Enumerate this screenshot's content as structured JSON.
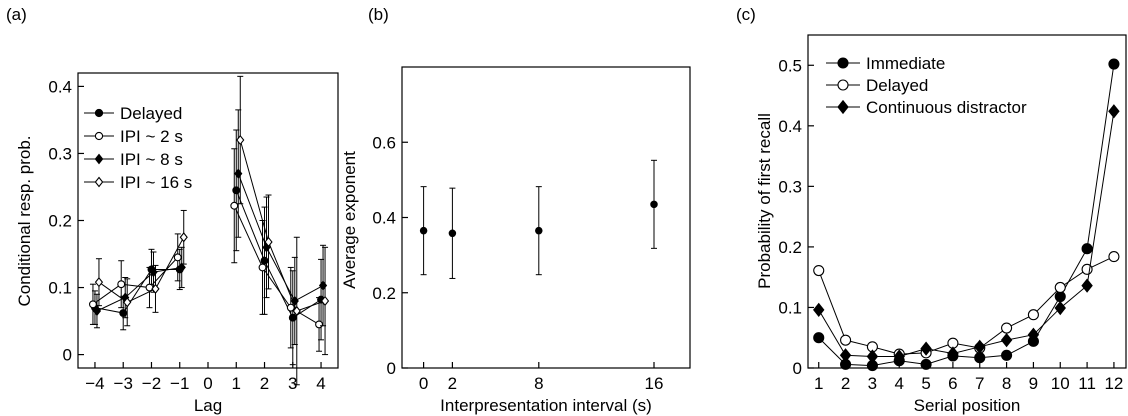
{
  "chart_data": [
    {
      "type": "line",
      "panel_label": "(a)",
      "xlabel": "Lag",
      "ylabel": "Conditional resp. prob.",
      "xlim": [
        -4.6,
        4.6
      ],
      "ylim": [
        -0.02,
        0.42
      ],
      "x_ticks": [
        -4,
        -3,
        -2,
        -1,
        0,
        1,
        2,
        3,
        4
      ],
      "x_tick_labels": [
        "−4",
        "−3",
        "−2",
        "−1",
        "0",
        "1",
        "2",
        "3",
        "4"
      ],
      "y_ticks": [
        0,
        0.1,
        0.2,
        0.3,
        0.4
      ],
      "y_tick_labels": [
        "0",
        "0.1",
        "0.2",
        "0.3",
        "0.4"
      ],
      "legend_position": "top-left",
      "series": [
        {
          "name": "Delayed",
          "marker": "filled-circle",
          "segments": [
            {
              "x": [
                -4,
                -3,
                -2,
                -1
              ],
              "y": [
                0.07,
                0.062,
                0.127,
                0.127
              ],
              "err": [
                0.025,
                0.025,
                0.03,
                0.03
              ]
            },
            {
              "x": [
                1,
                2,
                3,
                4
              ],
              "y": [
                0.245,
                0.14,
                0.055,
                0.082
              ],
              "err": [
                0.09,
                0.08,
                0.07,
                0.06
              ]
            }
          ]
        },
        {
          "name": "IPI ~ 2 s",
          "marker": "open-circle",
          "segments": [
            {
              "x": [
                -4,
                -3,
                -2,
                -1
              ],
              "y": [
                0.075,
                0.105,
                0.1,
                0.145
              ],
              "err": [
                0.03,
                0.035,
                0.03,
                0.035
              ]
            },
            {
              "x": [
                1,
                2,
                3,
                4
              ],
              "y": [
                0.222,
                0.13,
                0.07,
                0.045
              ],
              "err": [
                0.085,
                0.07,
                0.06,
                0.04
              ]
            }
          ]
        },
        {
          "name": "IPI ~ 8 s",
          "marker": "filled-diamond",
          "segments": [
            {
              "x": [
                -4,
                -3,
                -2,
                -1
              ],
              "y": [
                0.065,
                0.085,
                0.123,
                0.13
              ],
              "err": [
                0.025,
                0.03,
                0.03,
                0.03
              ]
            },
            {
              "x": [
                1,
                2,
                3,
                4
              ],
              "y": [
                0.27,
                0.16,
                0.08,
                0.103
              ],
              "err": [
                0.095,
                0.075,
                0.065,
                0.06
              ]
            }
          ]
        },
        {
          "name": "IPI ~ 16 s",
          "marker": "open-diamond",
          "segments": [
            {
              "x": [
                -4,
                -3,
                -2,
                -1
              ],
              "y": [
                0.108,
                0.078,
                0.098,
                0.175
              ],
              "err": [
                0.035,
                0.035,
                0.035,
                0.04
              ]
            },
            {
              "x": [
                1,
                2,
                3,
                4
              ],
              "y": [
                0.32,
                0.168,
                0.065,
                0.08
              ],
              "err": [
                0.095,
                0.07,
                0.11,
                0.08
              ]
            }
          ]
        }
      ]
    },
    {
      "type": "scatter",
      "panel_label": "(b)",
      "xlabel": "Interpresentation interval (s)",
      "ylabel": "Average exponent",
      "xlim": [
        -1.5,
        18.5
      ],
      "ylim": [
        0,
        0.8
      ],
      "x_ticks": [
        0,
        2,
        8,
        16
      ],
      "x_tick_labels": [
        "0",
        "2",
        "8",
        "16"
      ],
      "y_ticks": [
        0,
        0.2,
        0.4,
        0.6
      ],
      "y_tick_labels": [
        "0",
        "0.2",
        "0.4",
        "0.6"
      ],
      "series": [
        {
          "name": "",
          "marker": "filled-circle",
          "x": [
            0,
            2,
            8,
            16
          ],
          "y": [
            0.365,
            0.358,
            0.365,
            0.435
          ],
          "err": [
            0.117,
            0.12,
            0.117,
            0.117
          ]
        }
      ]
    },
    {
      "type": "line",
      "panel_label": "(c)",
      "xlabel": "Serial position",
      "ylabel": "Probability of first recall",
      "xlim": [
        0.6,
        12.45
      ],
      "ylim": [
        0,
        0.55
      ],
      "x_ticks": [
        1,
        2,
        3,
        4,
        5,
        6,
        7,
        8,
        9,
        10,
        11,
        12
      ],
      "x_tick_labels": [
        "1",
        "2",
        "3",
        "4",
        "5",
        "6",
        "7",
        "8",
        "9",
        "10",
        "11",
        "12"
      ],
      "y_ticks": [
        0,
        0.1,
        0.2,
        0.3,
        0.4,
        0.5
      ],
      "y_tick_labels": [
        "0",
        "0.1",
        "0.2",
        "0.3",
        "0.4",
        "0.5"
      ],
      "legend_position": "top-left",
      "series": [
        {
          "name": "Immediate",
          "marker": "filled-circle",
          "x": [
            1,
            2,
            3,
            4,
            5,
            6,
            7,
            8,
            9,
            10,
            11,
            12
          ],
          "y": [
            0.05,
            0.006,
            0.004,
            0.012,
            0.006,
            0.02,
            0.017,
            0.021,
            0.044,
            0.118,
            0.197,
            0.502
          ]
        },
        {
          "name": "Delayed",
          "marker": "open-circle",
          "x": [
            1,
            2,
            3,
            4,
            5,
            6,
            7,
            8,
            9,
            10,
            11,
            12
          ],
          "y": [
            0.161,
            0.046,
            0.035,
            0.023,
            0.025,
            0.041,
            0.033,
            0.066,
            0.088,
            0.133,
            0.163,
            0.184
          ]
        },
        {
          "name": "Continuous distractor",
          "marker": "filled-diamond",
          "x": [
            1,
            2,
            3,
            4,
            5,
            6,
            7,
            8,
            9,
            10,
            11,
            12
          ],
          "y": [
            0.096,
            0.021,
            0.019,
            0.019,
            0.032,
            0.024,
            0.035,
            0.046,
            0.055,
            0.099,
            0.136,
            0.424
          ]
        }
      ]
    }
  ]
}
